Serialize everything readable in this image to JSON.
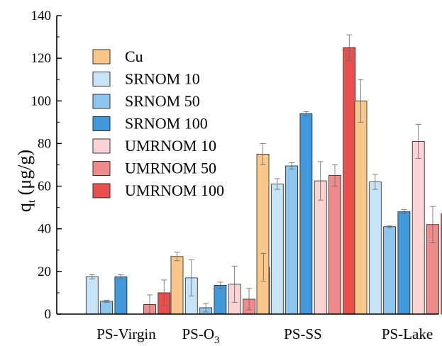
{
  "chart_data": {
    "type": "bar",
    "title": "",
    "xlabel": "",
    "ylabel": {
      "main": "q",
      "subscript": "t",
      "unit": " (μg/g)"
    },
    "ylim": [
      0,
      140
    ],
    "yticks": [
      0,
      20,
      40,
      60,
      80,
      100,
      120,
      140
    ],
    "grid": false,
    "legend_position": "top-left",
    "categories": [
      {
        "label": "PS-Virgin",
        "sub": ""
      },
      {
        "label": "PS-O",
        "sub": "3"
      },
      {
        "label": "PS-SS",
        "sub": ""
      },
      {
        "label": "PS-Lake",
        "sub": ""
      }
    ],
    "series": [
      {
        "name": "Cu",
        "color": "#F9C78A",
        "values": [
          0,
          27,
          75,
          100
        ],
        "errors": [
          0,
          2,
          5,
          10
        ]
      },
      {
        "name": "SRNOM 10",
        "color": "#C7E3F6",
        "values": [
          17.5,
          17,
          61,
          62
        ],
        "errors": [
          1,
          8.5,
          2.5,
          3.5
        ]
      },
      {
        "name": "SRNOM 50",
        "color": "#8CC6EE",
        "values": [
          6,
          3,
          69.5,
          41
        ],
        "errors": [
          0.5,
          2,
          1.5,
          0.5
        ]
      },
      {
        "name": "SRNOM 100",
        "color": "#4199DC",
        "values": [
          17.5,
          13.5,
          94,
          48
        ],
        "errors": [
          1,
          1.5,
          1,
          1
        ]
      },
      {
        "name": "UMRNOM 10",
        "color": "#FAD4D5",
        "values": [
          0,
          14,
          62.5,
          81
        ],
        "errors": [
          0,
          8.5,
          9,
          8
        ]
      },
      {
        "name": "UMRNOM 50",
        "color": "#EF8B8B",
        "values": [
          4.5,
          7,
          65,
          42
        ],
        "errors": [
          4.5,
          5,
          5,
          8.5
        ]
      },
      {
        "name": "UMRNOM 100",
        "color": "#E8504E",
        "values": [
          10,
          22,
          125,
          47
        ],
        "errors": [
          6,
          6.5,
          6,
          6.5
        ]
      }
    ]
  }
}
